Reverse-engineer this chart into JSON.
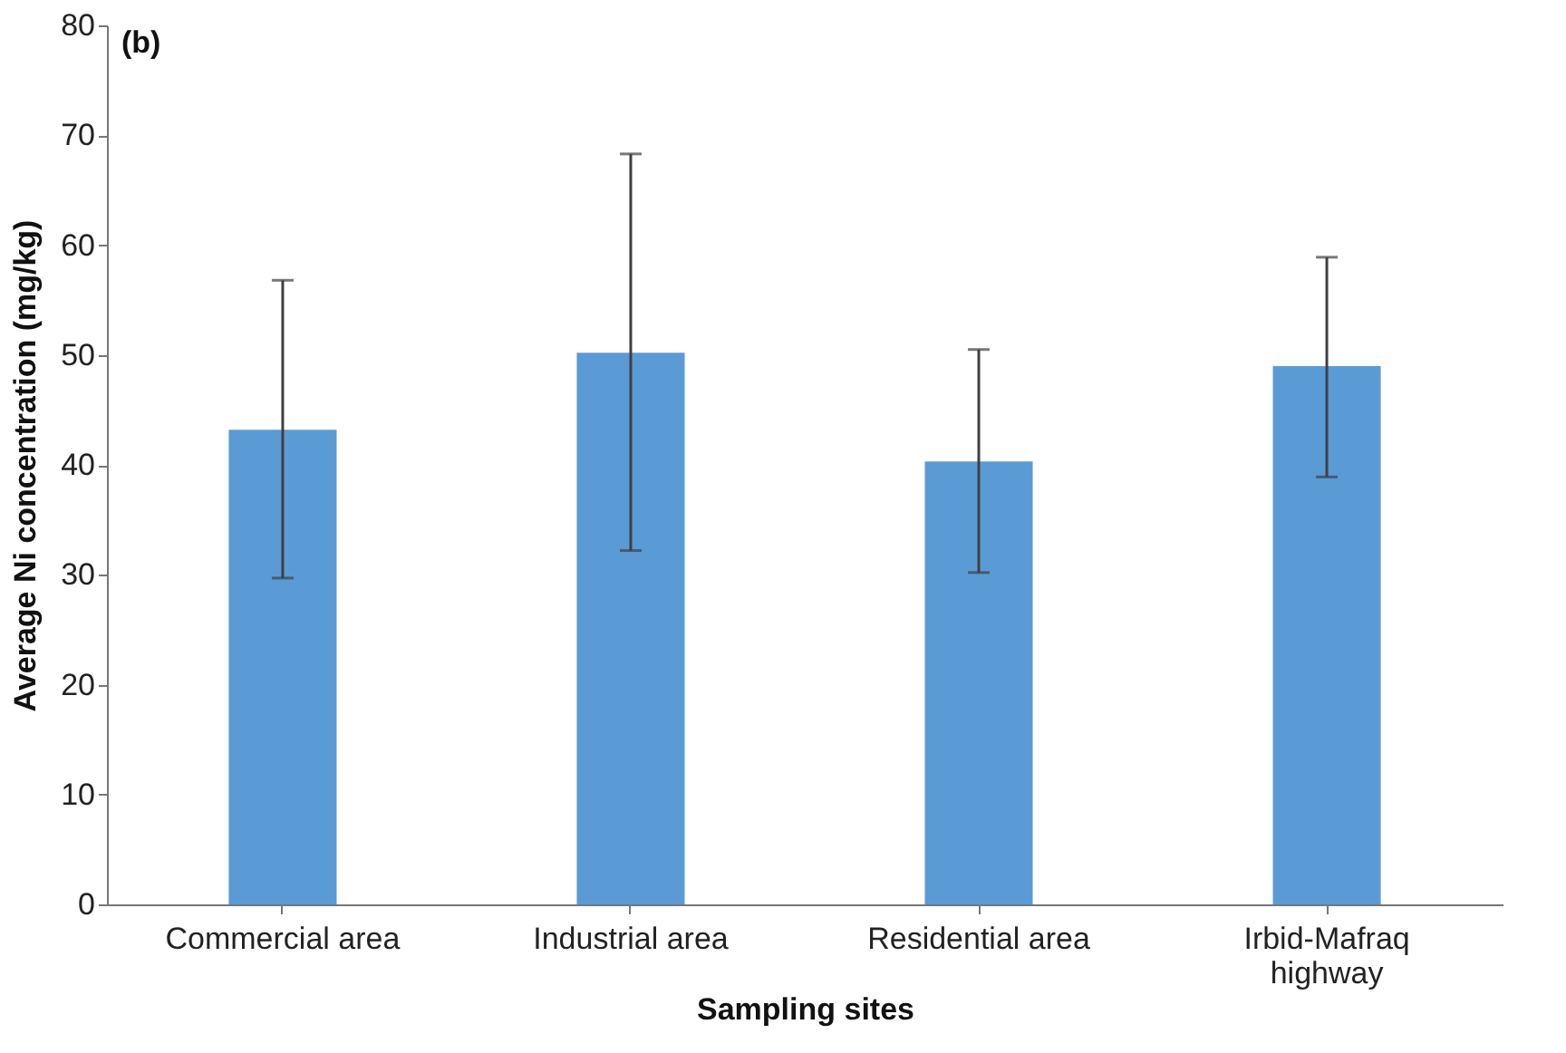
{
  "chart_data": {
    "type": "bar",
    "xlabel": "Sampling  sites",
    "ylabel": "Average Ni concentration (mg/kg)",
    "annotations": [
      "(b)"
    ],
    "categories": [
      "Commercial area",
      "Industrial area",
      "Residential area",
      "Irbid-Mafraq highway"
    ],
    "values": [
      43.2,
      50.2,
      40.3,
      49.0
    ],
    "errors": [
      [
        29.7,
        56.8
      ],
      [
        32.2,
        68.3
      ],
      [
        30.2,
        50.5
      ],
      [
        38.9,
        58.9
      ]
    ],
    "color": "#5b9bd5",
    "ylim": [
      0,
      80
    ],
    "yticks": [
      0,
      10,
      20,
      30,
      40,
      50,
      60,
      70,
      80
    ],
    "grid": false
  }
}
